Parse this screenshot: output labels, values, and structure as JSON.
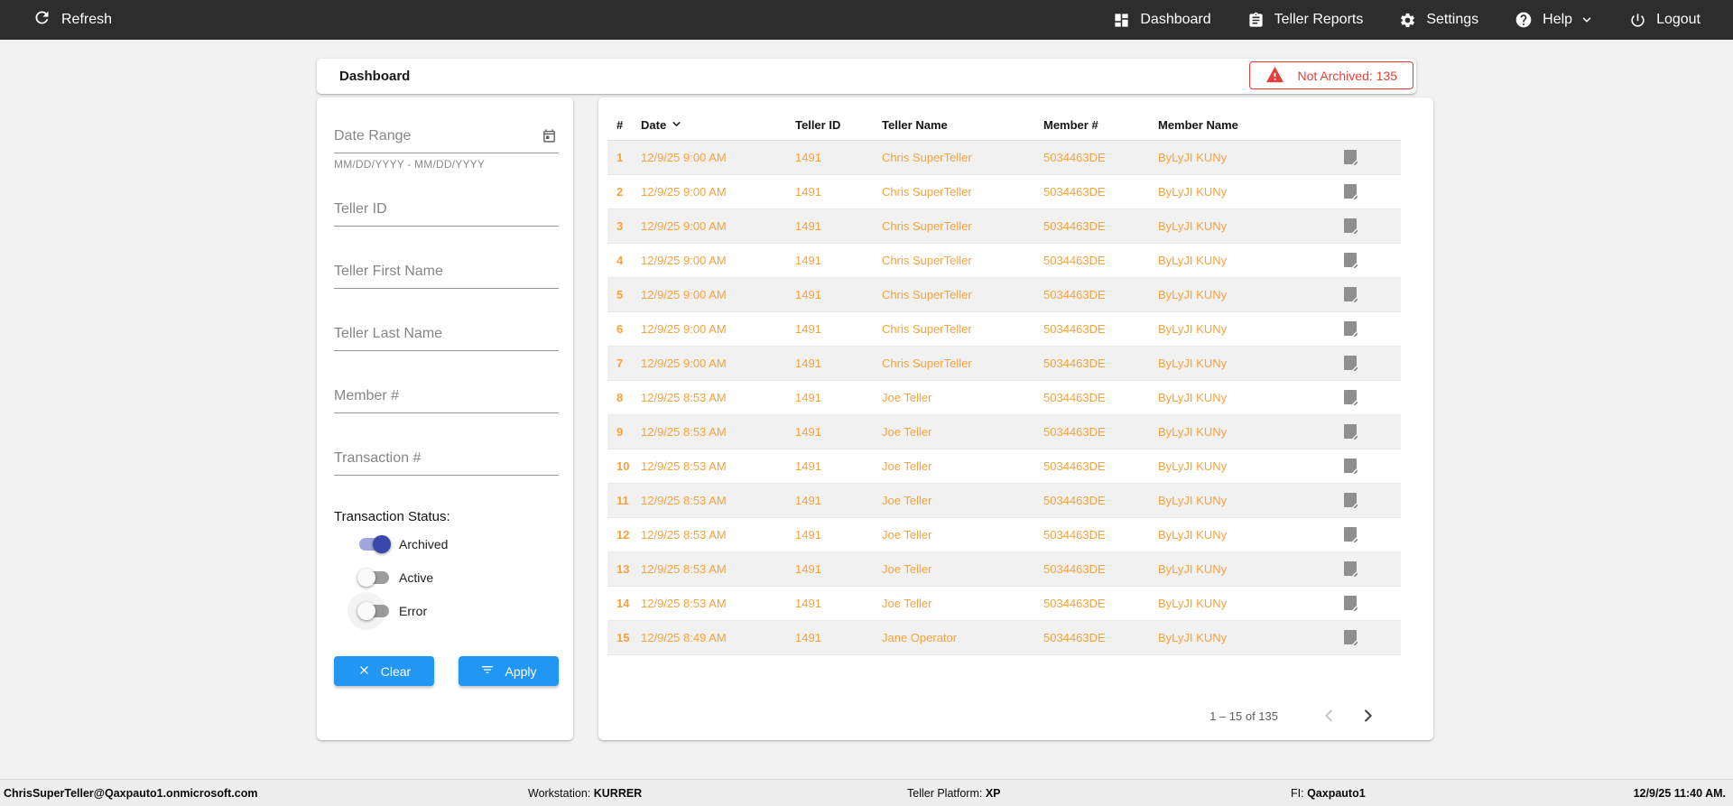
{
  "navbar": {
    "refresh_label": "Refresh",
    "items": [
      {
        "label": "Dashboard",
        "icon": "dashboard-icon"
      },
      {
        "label": "Teller Reports",
        "icon": "clipboard-icon"
      },
      {
        "label": "Settings",
        "icon": "gear-icon"
      },
      {
        "label": "Help",
        "icon": "help-icon"
      },
      {
        "label": "Logout",
        "icon": "power-icon"
      }
    ]
  },
  "header": {
    "title": "Dashboard",
    "badge_label": "Not Archived: 135"
  },
  "filters": {
    "date_range_placeholder": "Date Range",
    "date_range_helper": "MM/DD/YYYY - MM/DD/YYYY",
    "teller_id_placeholder": "Teller ID",
    "teller_first_placeholder": "Teller First Name",
    "teller_last_placeholder": "Teller Last Name",
    "member_placeholder": "Member #",
    "transaction_placeholder": "Transaction #",
    "status_label": "Transaction Status:",
    "toggles": [
      {
        "label": "Archived",
        "on": true,
        "halo": false
      },
      {
        "label": "Active",
        "on": false,
        "halo": false
      },
      {
        "label": "Error",
        "on": false,
        "halo": true
      }
    ],
    "clear_label": "Clear",
    "apply_label": "Apply"
  },
  "table": {
    "columns": [
      "#",
      "Date",
      "Teller ID",
      "Teller Name",
      "Member #",
      "Member Name"
    ],
    "sorted_column": "Date",
    "sort_direction": "desc",
    "rows": [
      {
        "num": "1",
        "date": "12/9/25 9:00 AM",
        "teller_id": "1491",
        "teller_name": "Chris SuperTeller",
        "member_num": "5034463DE",
        "member_name": "ByLyJI KUNy"
      },
      {
        "num": "2",
        "date": "12/9/25 9:00 AM",
        "teller_id": "1491",
        "teller_name": "Chris SuperTeller",
        "member_num": "5034463DE",
        "member_name": "ByLyJI KUNy"
      },
      {
        "num": "3",
        "date": "12/9/25 9:00 AM",
        "teller_id": "1491",
        "teller_name": "Chris SuperTeller",
        "member_num": "5034463DE",
        "member_name": "ByLyJI KUNy"
      },
      {
        "num": "4",
        "date": "12/9/25 9:00 AM",
        "teller_id": "1491",
        "teller_name": "Chris SuperTeller",
        "member_num": "5034463DE",
        "member_name": "ByLyJI KUNy"
      },
      {
        "num": "5",
        "date": "12/9/25 9:00 AM",
        "teller_id": "1491",
        "teller_name": "Chris SuperTeller",
        "member_num": "5034463DE",
        "member_name": "ByLyJI KUNy"
      },
      {
        "num": "6",
        "date": "12/9/25 9:00 AM",
        "teller_id": "1491",
        "teller_name": "Chris SuperTeller",
        "member_num": "5034463DE",
        "member_name": "ByLyJI KUNy"
      },
      {
        "num": "7",
        "date": "12/9/25 9:00 AM",
        "teller_id": "1491",
        "teller_name": "Chris SuperTeller",
        "member_num": "5034463DE",
        "member_name": "ByLyJI KUNy"
      },
      {
        "num": "8",
        "date": "12/9/25 8:53 AM",
        "teller_id": "1491",
        "teller_name": "Joe Teller",
        "member_num": "5034463DE",
        "member_name": "ByLyJI KUNy"
      },
      {
        "num": "9",
        "date": "12/9/25 8:53 AM",
        "teller_id": "1491",
        "teller_name": "Joe Teller",
        "member_num": "5034463DE",
        "member_name": "ByLyJI KUNy"
      },
      {
        "num": "10",
        "date": "12/9/25 8:53 AM",
        "teller_id": "1491",
        "teller_name": "Joe Teller",
        "member_num": "5034463DE",
        "member_name": "ByLyJI KUNy"
      },
      {
        "num": "11",
        "date": "12/9/25 8:53 AM",
        "teller_id": "1491",
        "teller_name": "Joe Teller",
        "member_num": "5034463DE",
        "member_name": "ByLyJI KUNy"
      },
      {
        "num": "12",
        "date": "12/9/25 8:53 AM",
        "teller_id": "1491",
        "teller_name": "Joe Teller",
        "member_num": "5034463DE",
        "member_name": "ByLyJI KUNy"
      },
      {
        "num": "13",
        "date": "12/9/25 8:53 AM",
        "teller_id": "1491",
        "teller_name": "Joe Teller",
        "member_num": "5034463DE",
        "member_name": "ByLyJI KUNy"
      },
      {
        "num": "14",
        "date": "12/9/25 8:53 AM",
        "teller_id": "1491",
        "teller_name": "Joe Teller",
        "member_num": "5034463DE",
        "member_name": "ByLyJI KUNy"
      },
      {
        "num": "15",
        "date": "12/9/25 8:49 AM",
        "teller_id": "1491",
        "teller_name": "Jane Operator",
        "member_num": "5034463DE",
        "member_name": "ByLyJI KUNy"
      }
    ],
    "pagination": {
      "range_label": "1 – 15 of 135",
      "prev_enabled": false,
      "next_enabled": true
    }
  },
  "footer": {
    "user_email": "ChrisSuperTeller@Qaxpauto1.onmicrosoft.com",
    "workstation_label": "Workstation:",
    "workstation_value": "KURRER",
    "platform_label": "Teller Platform:",
    "platform_value": "XP",
    "fi_label": "FI:",
    "fi_value": "Qaxpauto1",
    "datetime": "12/9/25 11:40 AM."
  },
  "colors": {
    "navbar_bg": "#2e2d2d",
    "accent_blue": "#2196f3",
    "toggle_on": "#3949ab",
    "warn_red": "#e53935",
    "row_orange": "#f8a23c",
    "stripe_gray": "#f1f1f1"
  }
}
